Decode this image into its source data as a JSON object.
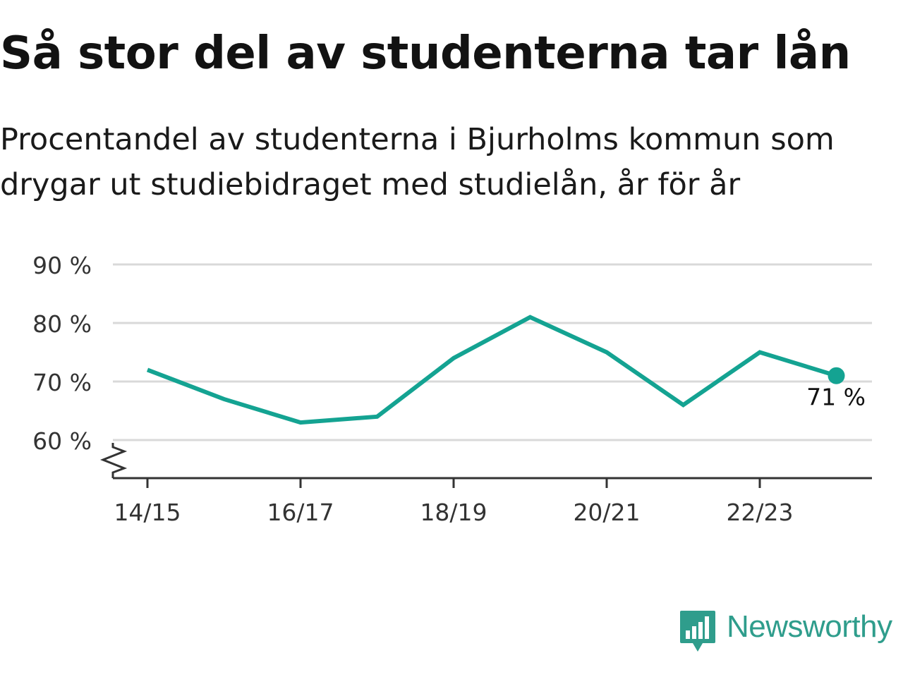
{
  "header": {
    "title": "Så stor del av studenterna tar lån",
    "subtitle": "Procentandel av studenterna i Bjurholms kommun som drygar ut studiebidraget med studielån, år för år"
  },
  "branding": {
    "name": "Newsworthy",
    "logo_icon": "bar-chart-speech-bubble-icon",
    "color": "#2f9d8c"
  },
  "chart_data": {
    "type": "line",
    "x": [
      "14/15",
      "15/16",
      "16/17",
      "17/18",
      "18/19",
      "19/20",
      "20/21",
      "21/22",
      "22/23",
      "23/24"
    ],
    "x_tick_labels": [
      "14/15",
      "16/17",
      "18/19",
      "20/21",
      "22/23"
    ],
    "series": [
      {
        "values": [
          72,
          67,
          63,
          64,
          74,
          81,
          75,
          66,
          75,
          71
        ],
        "color": "#14a392"
      }
    ],
    "y_ticks": [
      {
        "value": 60,
        "label": "60 %"
      },
      {
        "value": 70,
        "label": "70 %"
      },
      {
        "value": 80,
        "label": "80 %"
      },
      {
        "value": 90,
        "label": "90 %"
      }
    ],
    "ylim": [
      53.5,
      90
    ],
    "y_axis_broken": true,
    "grid": true,
    "last_value_label": "71 %"
  }
}
